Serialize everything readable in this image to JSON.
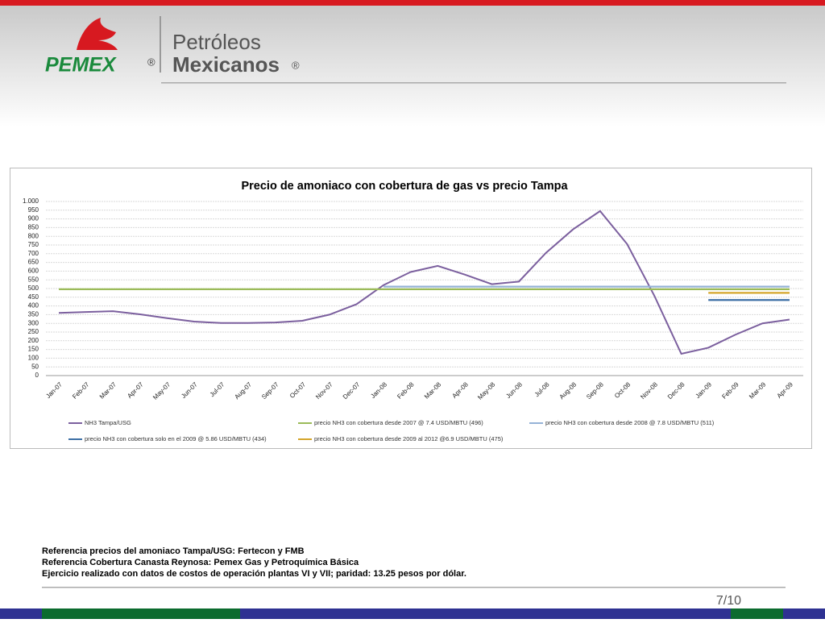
{
  "header": {
    "brand": "PEMEX",
    "brand_mark": "®",
    "name_line1": "Petróleos",
    "name_line2": "Mexicanos",
    "name_mark": "®"
  },
  "chart_data": {
    "type": "line",
    "title": "Precio de amoniaco con cobertura de gas vs precio Tampa",
    "categories": [
      "Jan-07",
      "Feb-07",
      "Mar-07",
      "Apr-07",
      "May-07",
      "Jun-07",
      "Jul-07",
      "Aug-07",
      "Sep-07",
      "Oct-07",
      "Nov-07",
      "Dec-07",
      "Jan-08",
      "Feb-08",
      "Mar-08",
      "Apr-08",
      "May-08",
      "Jun-08",
      "Jul-08",
      "Aug-08",
      "Sep-08",
      "Oct-08",
      "Nov-08",
      "Dec-08",
      "Jan-09",
      "Feb-09",
      "Mar-09",
      "Apr-09"
    ],
    "series": [
      {
        "name": "NH3 Tampa/USG",
        "color": "#7b5f9e",
        "values": [
          360,
          365,
          370,
          352,
          330,
          310,
          302,
          302,
          305,
          315,
          350,
          410,
          520,
          595,
          630,
          580,
          525,
          540,
          705,
          840,
          945,
          755,
          460,
          125,
          160,
          235,
          300,
          322
        ]
      },
      {
        "name": "precio NH3 con cobertura desde 2007  @ 7.4 USD/MBTU (496)",
        "color": "#9bbb59",
        "values": [
          496,
          496,
          496,
          496,
          496,
          496,
          496,
          496,
          496,
          496,
          496,
          496,
          496,
          496,
          496,
          496,
          496,
          496,
          496,
          496,
          496,
          496,
          496,
          496,
          496,
          496,
          496,
          496
        ]
      },
      {
        "name": "precio NH3 con cobertura desde 2008  @ 7.8 USD/MBTU (511)",
        "color": "#95b3d7",
        "values": [
          null,
          null,
          null,
          null,
          null,
          null,
          null,
          null,
          null,
          null,
          null,
          null,
          511,
          511,
          511,
          511,
          511,
          511,
          511,
          511,
          511,
          511,
          511,
          511,
          511,
          511,
          511,
          511
        ]
      },
      {
        "name": "precio NH3 con cobertura solo en el 2009  @ 5.86 USD/MBTU (434)",
        "color": "#3b6ea5",
        "values": [
          null,
          null,
          null,
          null,
          null,
          null,
          null,
          null,
          null,
          null,
          null,
          null,
          null,
          null,
          null,
          null,
          null,
          null,
          null,
          null,
          null,
          null,
          null,
          null,
          434,
          434,
          434,
          434
        ]
      },
      {
        "name": "precio NH3 con cobertura desde 2009  al 2012  @6.9 USD/MBTU (475)",
        "color": "#d4a52a",
        "values": [
          null,
          null,
          null,
          null,
          null,
          null,
          null,
          null,
          null,
          null,
          null,
          null,
          null,
          null,
          null,
          null,
          null,
          null,
          null,
          null,
          null,
          null,
          null,
          null,
          475,
          475,
          475,
          475
        ]
      }
    ],
    "ylim": [
      0,
      1000
    ],
    "yticks": [
      0,
      50,
      100,
      150,
      200,
      250,
      300,
      350,
      400,
      450,
      500,
      550,
      600,
      650,
      700,
      750,
      800,
      850,
      900,
      950,
      {
        "value": 1000,
        "label": "1.000"
      }
    ],
    "grid": true
  },
  "footnotes": [
    "Referencia precios del amoniaco Tampa/USG: Fertecon y FMB",
    "Referencia Cobertura Canasta Reynosa: Pemex Gas y Petroquímica Básica",
    "Ejercicio realizado con datos de costos de operación plantas VI y VII; paridad: 13.25 pesos por dólar."
  ],
  "page_number": "7/10"
}
